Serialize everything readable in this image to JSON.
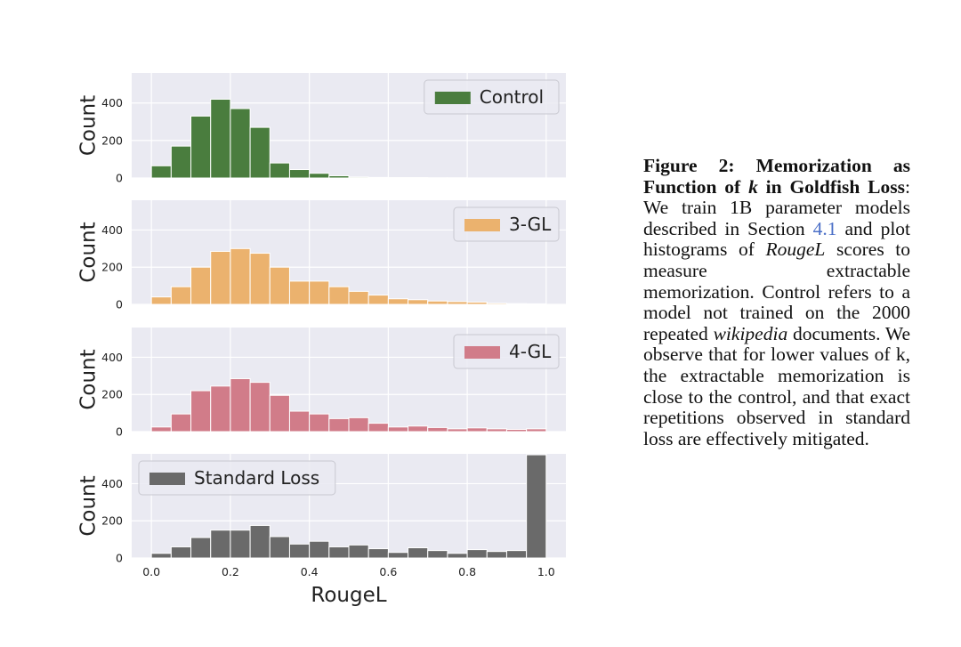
{
  "chart_data": [
    {
      "type": "histogram",
      "legend": "Control",
      "legend_position": "top-right",
      "color": "#4a7d3e",
      "ylabel": "Count",
      "yticks": [
        0,
        200,
        400
      ],
      "ylim": [
        0,
        560
      ],
      "xlim": [
        -0.05,
        1.05
      ],
      "bin_edges": [
        0.0,
        0.05,
        0.1,
        0.15,
        0.2,
        0.25,
        0.3,
        0.35,
        0.4,
        0.45,
        0.5,
        0.55,
        0.6,
        0.65,
        0.7,
        0.75,
        0.8,
        0.85,
        0.9,
        0.95,
        1.0
      ],
      "values": [
        65,
        170,
        330,
        420,
        370,
        270,
        80,
        45,
        25,
        12,
        5,
        3,
        2,
        2,
        1,
        1,
        0,
        0,
        0,
        0
      ]
    },
    {
      "type": "histogram",
      "legend": "3-GL",
      "legend_position": "top-right",
      "color": "#ebb26e",
      "ylabel": "Count",
      "yticks": [
        0,
        200,
        400
      ],
      "ylim": [
        0,
        560
      ],
      "xlim": [
        -0.05,
        1.05
      ],
      "bin_edges": [
        0.0,
        0.05,
        0.1,
        0.15,
        0.2,
        0.25,
        0.3,
        0.35,
        0.4,
        0.45,
        0.5,
        0.55,
        0.6,
        0.65,
        0.7,
        0.75,
        0.8,
        0.85,
        0.9,
        0.95,
        1.0
      ],
      "values": [
        40,
        95,
        200,
        285,
        300,
        275,
        200,
        125,
        125,
        95,
        70,
        50,
        30,
        25,
        18,
        15,
        12,
        6,
        4,
        3
      ]
    },
    {
      "type": "histogram",
      "legend": "4-GL",
      "legend_position": "top-right",
      "color": "#d17c89",
      "ylabel": "Count",
      "yticks": [
        0,
        200,
        400
      ],
      "ylim": [
        0,
        560
      ],
      "xlim": [
        -0.05,
        1.05
      ],
      "bin_edges": [
        0.0,
        0.05,
        0.1,
        0.15,
        0.2,
        0.25,
        0.3,
        0.35,
        0.4,
        0.45,
        0.5,
        0.55,
        0.6,
        0.65,
        0.7,
        0.75,
        0.8,
        0.85,
        0.9,
        0.95,
        1.0
      ],
      "values": [
        25,
        95,
        220,
        245,
        285,
        265,
        195,
        110,
        95,
        70,
        75,
        45,
        25,
        30,
        22,
        15,
        20,
        15,
        12,
        15
      ]
    },
    {
      "type": "histogram",
      "legend": "Standard Loss",
      "legend_position": "top-left",
      "color": "#6a6a6a",
      "ylabel": "Count",
      "xlabel": "RougeL",
      "yticks": [
        0,
        200,
        400
      ],
      "xticks": [
        0.0,
        0.2,
        0.4,
        0.6,
        0.8,
        1.0
      ],
      "xtick_labels": [
        "0.0",
        "0.2",
        "0.4",
        "0.6",
        "0.8",
        "1.0"
      ],
      "ylim": [
        0,
        560
      ],
      "xlim": [
        -0.05,
        1.05
      ],
      "bin_edges": [
        0.0,
        0.05,
        0.1,
        0.15,
        0.2,
        0.25,
        0.3,
        0.35,
        0.4,
        0.45,
        0.5,
        0.55,
        0.6,
        0.65,
        0.7,
        0.75,
        0.8,
        0.85,
        0.9,
        0.95,
        1.0
      ],
      "values": [
        25,
        60,
        110,
        150,
        150,
        175,
        115,
        75,
        90,
        60,
        70,
        50,
        30,
        55,
        40,
        25,
        45,
        35,
        40,
        555
      ]
    }
  ],
  "caption": {
    "title": "Figure 2: Memorization as Function of",
    "title_k": "k",
    "title_tail": "in Goldfish Loss",
    "title_colon": ":",
    "body_1": "We train 1B parameter models described in Section",
    "section_ref": "4.1",
    "body_2": "and plot histograms of",
    "metric": "RougeL",
    "body_3": "scores to measure extractable memorization. Control refers to a model not trained on the 2000 repeated",
    "source": "wikipedia",
    "body_4": "documents. We observe that for lower values of k, the extractable memorization is close to the control, and that exact repetitions observed in standard loss are effectively mitigated."
  }
}
